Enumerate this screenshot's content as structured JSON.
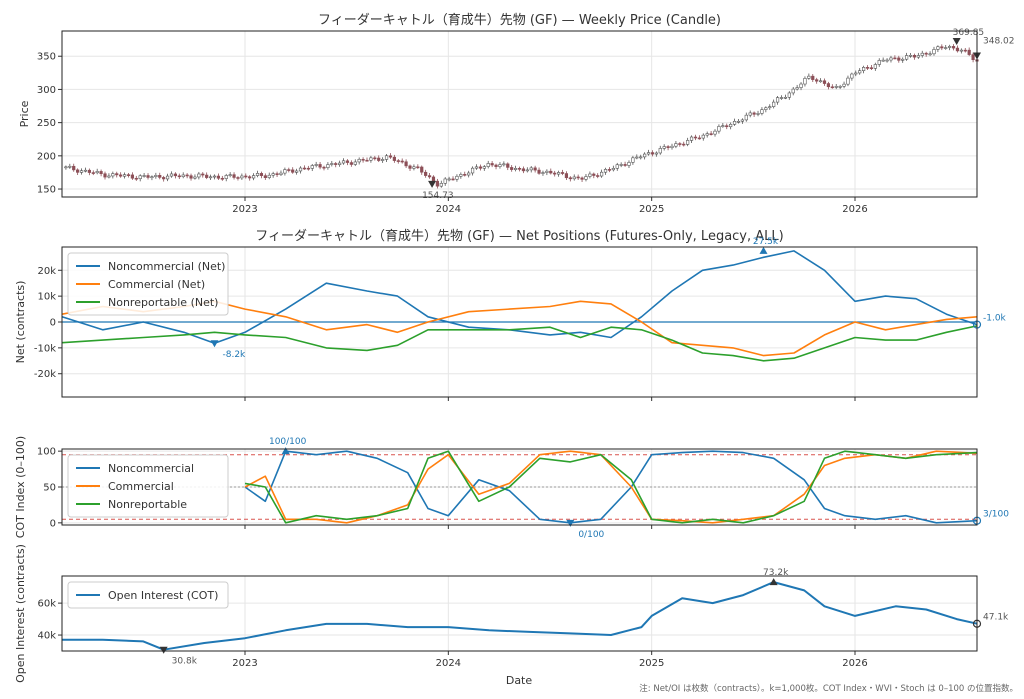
{
  "footnote": "注: Net/OI は枚数（contracts）。k=1,000枚。COT Index・WVI・Stoch は 0–100 の位置指数。",
  "xlabel": "Date",
  "x_axis": {
    "range": [
      2022.1,
      2026.6
    ],
    "ticks": [
      2023,
      2024,
      2025,
      2026
    ],
    "tick_labels": [
      "2023",
      "2024",
      "2025",
      "2026"
    ]
  },
  "colors": {
    "noncommercial": "#1f77b4",
    "commercial": "#ff7f0e",
    "nonreportable": "#2ca02c",
    "candle_up": "#555555",
    "candle_down": "#8c4f57",
    "zero_line": "#1f77b4",
    "band": "#d9534f"
  },
  "chart_data": [
    {
      "type": "candlestick",
      "title": "フィーダーキャトル（育成牛）先物 (GF) — Weekly Price (Candle)",
      "ylabel": "Price",
      "ylim": [
        138,
        388
      ],
      "yticks": [
        150,
        200,
        250,
        300,
        350
      ],
      "x": [
        2022.1,
        2022.3,
        2022.5,
        2022.7,
        2022.9,
        2023.1,
        2023.3,
        2023.5,
        2023.7,
        2023.85,
        2023.95,
        2024.05,
        2024.2,
        2024.35,
        2024.5,
        2024.65,
        2024.8,
        2024.95,
        2025.1,
        2025.25,
        2025.4,
        2025.55,
        2025.7,
        2025.78,
        2025.9,
        2026.0,
        2026.15,
        2026.3,
        2026.45,
        2026.52,
        2026.6
      ],
      "close": [
        183,
        172,
        168,
        170,
        168,
        170,
        182,
        190,
        198,
        180,
        157,
        170,
        188,
        180,
        175,
        165,
        180,
        200,
        215,
        230,
        250,
        270,
        300,
        320,
        300,
        325,
        345,
        350,
        365,
        360,
        343
      ],
      "annotations": [
        {
          "label": "369.85",
          "x": 2026.5,
          "y": 369.85
        },
        {
          "label": "348.02",
          "x": 2026.6,
          "y": 348.02
        },
        {
          "label": "154.73",
          "x": 2023.92,
          "y": 154.73
        }
      ]
    },
    {
      "type": "line",
      "title": "フィーダーキャトル（育成牛）先物 (GF) — Net Positions (Futures-Only, Legacy, ALL)",
      "ylabel": "Net (contracts)",
      "ylim": [
        -29000,
        29000
      ],
      "yticks": [
        -20000,
        -10000,
        0,
        10000,
        20000
      ],
      "ytick_labels": [
        "-20k",
        "-10k",
        "0",
        "10k",
        "20k"
      ],
      "legend": "top-left",
      "x": [
        2022.1,
        2022.3,
        2022.5,
        2022.7,
        2022.85,
        2023.0,
        2023.2,
        2023.4,
        2023.6,
        2023.75,
        2023.9,
        2024.1,
        2024.3,
        2024.5,
        2024.65,
        2024.8,
        2024.95,
        2025.1,
        2025.25,
        2025.4,
        2025.55,
        2025.7,
        2025.85,
        2026.0,
        2026.15,
        2026.3,
        2026.45,
        2026.6
      ],
      "series": [
        {
          "name": "Noncommercial (Net)",
          "values": [
            2000,
            -3000,
            0,
            -4000,
            -8200,
            -4000,
            5000,
            15000,
            12000,
            10000,
            2000,
            -2000,
            -3000,
            -5000,
            -4000,
            -6000,
            2000,
            12000,
            20000,
            22000,
            25000,
            27500,
            20000,
            8000,
            10000,
            9000,
            3000,
            -1000
          ]
        },
        {
          "name": "Commercial (Net)",
          "values": [
            3000,
            6000,
            4000,
            6000,
            8000,
            5000,
            2000,
            -3000,
            -1000,
            -4000,
            0,
            4000,
            5000,
            6000,
            8000,
            7000,
            0,
            -8000,
            -9000,
            -10000,
            -13000,
            -12000,
            -5000,
            0,
            -3000,
            -1000,
            1000,
            2000
          ]
        },
        {
          "name": "Nonreportable (Net)",
          "values": [
            -8000,
            -7000,
            -6000,
            -5000,
            -4000,
            -5000,
            -6000,
            -10000,
            -11000,
            -9000,
            -3000,
            -3000,
            -3000,
            -2000,
            -6000,
            -2000,
            -3000,
            -7000,
            -12000,
            -13000,
            -15000,
            -14000,
            -10000,
            -6000,
            -7000,
            -7000,
            -4000,
            -1500
          ]
        }
      ],
      "annotations": [
        {
          "label": "27.5k",
          "x": 2025.55,
          "y": 27500
        },
        {
          "label": "-8.2k",
          "x": 2022.85,
          "y": -8200
        },
        {
          "label": "-1.0k",
          "x": 2026.6,
          "y": -1000
        }
      ]
    },
    {
      "type": "line",
      "ylabel": "COT Index (0–100)",
      "ylim": [
        -3,
        103
      ],
      "yticks": [
        0,
        50,
        100
      ],
      "ref_lines": [
        95,
        50,
        5
      ],
      "legend": "top-left",
      "x": [
        2023.0,
        2023.1,
        2023.2,
        2023.35,
        2023.5,
        2023.65,
        2023.8,
        2023.9,
        2024.0,
        2024.15,
        2024.3,
        2024.45,
        2024.6,
        2024.75,
        2024.9,
        2025.0,
        2025.15,
        2025.3,
        2025.45,
        2025.6,
        2025.75,
        2025.85,
        2025.95,
        2026.1,
        2026.25,
        2026.4,
        2026.6
      ],
      "series": [
        {
          "name": "Noncommercial",
          "values": [
            50,
            30,
            100,
            95,
            100,
            90,
            70,
            20,
            10,
            60,
            45,
            5,
            0,
            5,
            50,
            95,
            98,
            100,
            98,
            90,
            60,
            20,
            10,
            5,
            10,
            0,
            3
          ]
        },
        {
          "name": "Commercial",
          "values": [
            50,
            65,
            5,
            5,
            0,
            10,
            25,
            75,
            95,
            40,
            55,
            95,
            100,
            95,
            50,
            5,
            3,
            0,
            5,
            10,
            40,
            80,
            90,
            95,
            90,
            100,
            97
          ]
        },
        {
          "name": "Nonreportable",
          "values": [
            55,
            50,
            0,
            10,
            5,
            10,
            20,
            90,
            100,
            30,
            50,
            90,
            85,
            95,
            60,
            5,
            0,
            5,
            0,
            10,
            30,
            90,
            100,
            95,
            90,
            95,
            98
          ]
        }
      ],
      "annotations": [
        {
          "label": "100/100",
          "x": 2023.2,
          "y": 100
        },
        {
          "label": "0/100",
          "x": 2024.6,
          "y": 0
        },
        {
          "label": "3/100",
          "x": 2026.6,
          "y": 3
        }
      ]
    },
    {
      "type": "line",
      "ylabel": "Open Interest (contracts)",
      "ylim": [
        30000,
        77000
      ],
      "yticks": [
        40000,
        60000
      ],
      "ytick_labels": [
        "40k",
        "60k"
      ],
      "legend": "top-left",
      "x": [
        2022.1,
        2022.3,
        2022.5,
        2022.6,
        2022.8,
        2023.0,
        2023.2,
        2023.4,
        2023.6,
        2023.8,
        2024.0,
        2024.2,
        2024.4,
        2024.6,
        2024.8,
        2024.95,
        2025.0,
        2025.15,
        2025.3,
        2025.45,
        2025.6,
        2025.75,
        2025.85,
        2026.0,
        2026.2,
        2026.35,
        2026.5,
        2026.6
      ],
      "series": [
        {
          "name": "Open Interest (COT)",
          "values": [
            37000,
            37000,
            36000,
            30800,
            35000,
            38000,
            43000,
            47000,
            47000,
            45000,
            45000,
            43000,
            42000,
            41000,
            40000,
            45000,
            52000,
            63000,
            60000,
            65000,
            73200,
            68000,
            58000,
            52000,
            58000,
            56000,
            50000,
            47100
          ]
        }
      ],
      "annotations": [
        {
          "label": "73.2k",
          "x": 2025.6,
          "y": 73200
        },
        {
          "label": "30.8k",
          "x": 2022.6,
          "y": 30800
        },
        {
          "label": "47.1k",
          "x": 2026.6,
          "y": 47100
        }
      ]
    }
  ]
}
